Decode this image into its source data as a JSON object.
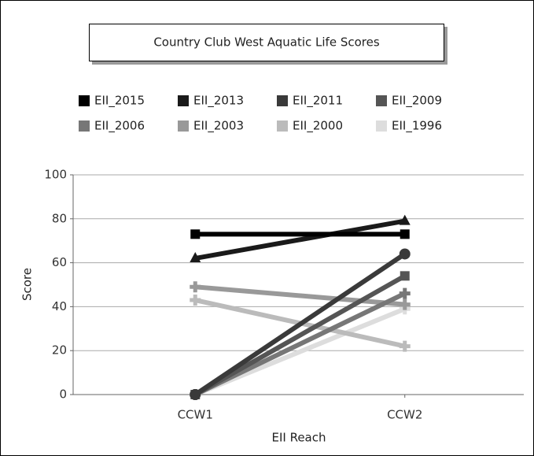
{
  "chart_data": {
    "type": "line",
    "title": "Country Club West Aquatic Life Scores",
    "x_label": "EII Reach",
    "y_label": "Score",
    "categories": [
      "CCW1",
      "CCW2"
    ],
    "ylim": [
      0,
      100
    ],
    "yticks": [
      0,
      20,
      40,
      60,
      80,
      100
    ],
    "grid": true,
    "series": [
      {
        "name": "EII_2015",
        "color": "#000000",
        "marker": "square",
        "values": [
          73,
          73
        ]
      },
      {
        "name": "EII_2013",
        "color": "#1a1a1a",
        "marker": "triangle",
        "values": [
          62,
          79
        ]
      },
      {
        "name": "EII_2011",
        "color": "#3a3a3a",
        "marker": "circle",
        "values": [
          0,
          64
        ]
      },
      {
        "name": "EII_2009",
        "color": "#555555",
        "marker": "square",
        "values": [
          0,
          54
        ]
      },
      {
        "name": "EII_2006",
        "color": "#777777",
        "marker": "plus",
        "values": [
          0,
          46
        ]
      },
      {
        "name": "EII_2003",
        "color": "#999999",
        "marker": "plus",
        "values": [
          49,
          41
        ]
      },
      {
        "name": "EII_2000",
        "color": "#bbbbbb",
        "marker": "plus",
        "values": [
          43,
          22
        ]
      },
      {
        "name": "EII_1996",
        "color": "#dddddd",
        "marker": "plus",
        "values": [
          0,
          39
        ]
      }
    ]
  }
}
